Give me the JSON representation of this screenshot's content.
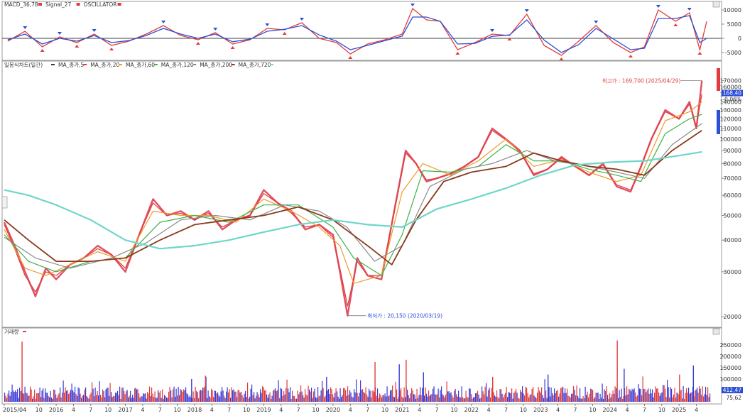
{
  "chart_data": [
    {
      "type": "line",
      "panel": "macd",
      "legend": [
        {
          "label": "MACD_36,78",
          "color": "#e23b3b"
        },
        {
          "label": "Signal_27",
          "color": "#e23b3b"
        },
        {
          "label": "OSCILLATOR",
          "color": "#e23b3b"
        }
      ],
      "yticks": [
        "10000",
        "5000",
        "0",
        "-5000"
      ],
      "ylim": [
        -7000,
        11500
      ],
      "series": [
        {
          "name": "MACD_36,78",
          "color": "#e23b3b",
          "x": [
            2015.3,
            2015.55,
            2015.8,
            2016.05,
            2016.3,
            2016.55,
            2016.8,
            2017.05,
            2017.3,
            2017.55,
            2017.8,
            2018.05,
            2018.3,
            2018.55,
            2018.8,
            2019.05,
            2019.3,
            2019.55,
            2019.8,
            2020.05,
            2020.25,
            2020.5,
            2020.75,
            2021.0,
            2021.15,
            2021.35,
            2021.55,
            2021.8,
            2022.05,
            2022.3,
            2022.55,
            2022.8,
            2023.05,
            2023.3,
            2023.55,
            2023.8,
            2024.05,
            2024.3,
            2024.5,
            2024.7,
            2024.95,
            2025.15,
            2025.3,
            2025.4
          ],
          "y": [
            -1000,
            2500,
            -3000,
            500,
            -1500,
            1500,
            -2500,
            -1000,
            1500,
            4500,
            1000,
            -500,
            2000,
            -2000,
            -500,
            3500,
            3000,
            5500,
            0,
            -1500,
            -5500,
            -2000,
            -500,
            1500,
            10500,
            6500,
            6000,
            -4000,
            -1500,
            1500,
            1000,
            8500,
            -2500,
            -6000,
            -1000,
            4500,
            -1500,
            -5000,
            -3000,
            10000,
            6000,
            9000,
            -4000,
            6000
          ]
        },
        {
          "name": "Signal_27",
          "color": "#2b4fd6",
          "x": [
            2015.3,
            2015.55,
            2015.8,
            2016.05,
            2016.3,
            2016.55,
            2016.8,
            2017.05,
            2017.3,
            2017.55,
            2017.8,
            2018.05,
            2018.3,
            2018.55,
            2018.8,
            2019.05,
            2019.3,
            2019.55,
            2019.8,
            2020.05,
            2020.25,
            2020.5,
            2020.75,
            2021.0,
            2021.15,
            2021.35,
            2021.55,
            2021.8,
            2022.05,
            2022.3,
            2022.55,
            2022.8,
            2023.05,
            2023.3,
            2023.55,
            2023.8,
            2024.05,
            2024.3,
            2024.5,
            2024.7,
            2024.95,
            2025.15,
            2025.3,
            2025.4
          ],
          "y": [
            -500,
            1500,
            -2000,
            0,
            -1000,
            1000,
            -1500,
            -800,
            1000,
            3500,
            1500,
            0,
            1500,
            -1200,
            -300,
            2500,
            3200,
            4500,
            1200,
            -1000,
            -4000,
            -2500,
            -800,
            800,
            7500,
            7500,
            6000,
            -2000,
            -1800,
            700,
            1200,
            6500,
            -600,
            -5000,
            -2200,
            3500,
            -200,
            -4000,
            -3500,
            7000,
            7000,
            8000,
            -1500,
            0
          ]
        }
      ]
    },
    {
      "type": "line",
      "panel": "price",
      "legend": [
        {
          "label": "일봉식차트(일간)",
          "color": "#3a3a3a"
        },
        {
          "label": "MA_종가,5",
          "color": "#e23b3b"
        },
        {
          "label": "MA_종가,20",
          "color": "#f09a2a"
        },
        {
          "label": "MA_종가,60",
          "color": "#3bb04a"
        },
        {
          "label": "MA_종가,120",
          "color": "#8a8a8a"
        },
        {
          "label": "MA_종가,200",
          "color": "#8a3a1a"
        },
        {
          "label": "MA_종가,720",
          "color": "#6fd6c9"
        }
      ],
      "yscale": "log",
      "ylim": [
        18500,
        190000
      ],
      "yticks": [
        "170000",
        "160000",
        "150000",
        "140000",
        "130000",
        "120000",
        "110000",
        "100000",
        "90000",
        "80000",
        "70000",
        "60000",
        "50000",
        "40000",
        "30000",
        "20000"
      ],
      "current_value_label": "168,40",
      "change_label": "-0.06%",
      "annotations": [
        {
          "text": "최고가 : 169,700 (2025/04/29)",
          "x": 2025.33,
          "y": 169700,
          "color": "#e23b3b"
        },
        {
          "text": "최저가 : 20,150 (2020/03/19)",
          "x": 2020.21,
          "y": 20150,
          "color": "#2b4fd6"
        }
      ],
      "series": [
        {
          "name": "일봉식차트(일간)",
          "color": "#d8344a",
          "x": [
            2015.25,
            2015.4,
            2015.55,
            2015.7,
            2015.85,
            2016.0,
            2016.2,
            2016.4,
            2016.6,
            2016.8,
            2017.0,
            2017.2,
            2017.4,
            2017.6,
            2017.8,
            2018.0,
            2018.2,
            2018.4,
            2018.6,
            2018.8,
            2019.0,
            2019.2,
            2019.4,
            2019.6,
            2019.8,
            2020.0,
            2020.1,
            2020.21,
            2020.35,
            2020.5,
            2020.7,
            2020.9,
            2021.05,
            2021.2,
            2021.35,
            2021.5,
            2021.7,
            2021.9,
            2022.1,
            2022.3,
            2022.5,
            2022.7,
            2022.9,
            2023.1,
            2023.3,
            2023.5,
            2023.7,
            2023.9,
            2024.1,
            2024.3,
            2024.45,
            2024.6,
            2024.8,
            2025.0,
            2025.15,
            2025.25,
            2025.33
          ],
          "y": [
            47000,
            38000,
            30000,
            24000,
            31000,
            28000,
            32000,
            34000,
            38000,
            35000,
            30000,
            42000,
            58000,
            50000,
            52000,
            48000,
            52000,
            44000,
            48000,
            50000,
            63000,
            56000,
            52000,
            44000,
            46000,
            42000,
            30000,
            20150,
            34000,
            29000,
            28000,
            55000,
            90000,
            80000,
            68000,
            70000,
            73000,
            78000,
            85000,
            110000,
            100000,
            90000,
            72000,
            76000,
            85000,
            78000,
            72000,
            80000,
            65000,
            62000,
            78000,
            100000,
            130000,
            120000,
            140000,
            110000,
            169700
          ]
        },
        {
          "name": "MA_종가,5",
          "color": "#e23b3b",
          "x": [
            2015.25,
            2015.4,
            2015.55,
            2015.7,
            2015.85,
            2016.0,
            2016.2,
            2016.4,
            2016.6,
            2016.8,
            2017.0,
            2017.2,
            2017.4,
            2017.6,
            2017.8,
            2018.0,
            2018.2,
            2018.4,
            2018.6,
            2018.8,
            2019.0,
            2019.2,
            2019.4,
            2019.6,
            2019.8,
            2020.0,
            2020.1,
            2020.21,
            2020.35,
            2020.5,
            2020.7,
            2020.9,
            2021.05,
            2021.2,
            2021.35,
            2021.5,
            2021.7,
            2021.9,
            2022.1,
            2022.3,
            2022.5,
            2022.7,
            2022.9,
            2023.1,
            2023.3,
            2023.5,
            2023.7,
            2023.9,
            2024.1,
            2024.3,
            2024.45,
            2024.6,
            2024.8,
            2025.0,
            2025.15,
            2025.25,
            2025.33
          ],
          "y": [
            46000,
            37000,
            29000,
            25000,
            30000,
            29000,
            32000,
            34000,
            37000,
            35000,
            31000,
            42000,
            56000,
            50000,
            51000,
            48000,
            51000,
            45000,
            48000,
            50000,
            61000,
            56000,
            51000,
            45000,
            46000,
            41000,
            31000,
            22000,
            33000,
            29000,
            29000,
            54000,
            88000,
            80000,
            69000,
            70000,
            73000,
            78000,
            85000,
            108000,
            99000,
            89000,
            73000,
            76000,
            84000,
            78000,
            72000,
            79000,
            66000,
            63000,
            77000,
            100000,
            128000,
            120000,
            137000,
            112000,
            150000
          ]
        },
        {
          "name": "MA_종가,20",
          "color": "#f09a2a",
          "x": [
            2015.25,
            2015.55,
            2015.85,
            2016.2,
            2016.6,
            2017.0,
            2017.4,
            2017.8,
            2018.2,
            2018.6,
            2019.0,
            2019.4,
            2019.8,
            2020.1,
            2020.3,
            2020.7,
            2021.0,
            2021.3,
            2021.7,
            2022.1,
            2022.5,
            2022.9,
            2023.3,
            2023.7,
            2024.1,
            2024.45,
            2024.8,
            2025.15,
            2025.33
          ],
          "y": [
            44000,
            31000,
            29000,
            32000,
            36000,
            33000,
            52000,
            50000,
            50000,
            47000,
            58000,
            52000,
            45000,
            38000,
            27000,
            29000,
            62000,
            80000,
            72000,
            82000,
            100000,
            78000,
            83000,
            74000,
            68000,
            72000,
            118000,
            128000,
            140000
          ]
        },
        {
          "name": "MA_종가,60",
          "color": "#3bb04a",
          "x": [
            2015.25,
            2015.6,
            2016.0,
            2016.5,
            2017.0,
            2017.5,
            2018.0,
            2018.5,
            2019.0,
            2019.5,
            2020.0,
            2020.3,
            2020.7,
            2021.0,
            2021.3,
            2021.7,
            2022.1,
            2022.5,
            2022.9,
            2023.3,
            2023.7,
            2024.1,
            2024.45,
            2024.8,
            2025.15,
            2025.33
          ],
          "y": [
            42000,
            33000,
            30000,
            33000,
            34000,
            47000,
            50000,
            47000,
            55000,
            55000,
            45000,
            34000,
            29000,
            42000,
            75000,
            74000,
            78000,
            95000,
            82000,
            82000,
            76000,
            72000,
            68000,
            105000,
            120000,
            125000
          ]
        },
        {
          "name": "MA_종가,120",
          "color": "#8a8a8a",
          "x": [
            2015.25,
            2015.7,
            2016.2,
            2016.8,
            2017.3,
            2017.8,
            2018.3,
            2018.8,
            2019.3,
            2019.8,
            2020.2,
            2020.6,
            2021.0,
            2021.4,
            2021.9,
            2022.3,
            2022.8,
            2023.2,
            2023.7,
            2024.1,
            2024.5,
            2024.9,
            2025.33
          ],
          "y": [
            41000,
            34000,
            31000,
            34000,
            39000,
            48000,
            50000,
            48000,
            55000,
            52000,
            45000,
            33000,
            38000,
            65000,
            76000,
            80000,
            90000,
            82000,
            78000,
            74000,
            70000,
            95000,
            115000
          ]
        },
        {
          "name": "MA_종가,200",
          "color": "#8a3a1a",
          "x": [
            2015.25,
            2015.6,
            2016.0,
            2016.5,
            2017.0,
            2017.5,
            2018.0,
            2018.5,
            2019.0,
            2019.5,
            2020.0,
            2020.5,
            2020.85,
            2021.2,
            2021.6,
            2022.0,
            2022.5,
            2022.9,
            2023.3,
            2023.7,
            2024.1,
            2024.5,
            2024.9,
            2025.33
          ],
          "y": [
            48000,
            40000,
            33000,
            33000,
            34000,
            40000,
            46000,
            48000,
            50000,
            54000,
            48000,
            38000,
            32000,
            48000,
            68000,
            74000,
            78000,
            88000,
            82000,
            78000,
            76000,
            72000,
            90000,
            108000
          ]
        },
        {
          "name": "MA_종가,720",
          "color": "#6fd6c9",
          "x": [
            2015.25,
            2015.6,
            2016.0,
            2016.5,
            2017.0,
            2017.5,
            2018.0,
            2018.5,
            2019.0,
            2019.5,
            2020.0,
            2020.5,
            2021.0,
            2021.5,
            2022.0,
            2022.5,
            2023.0,
            2023.5,
            2024.0,
            2024.5,
            2025.0,
            2025.33
          ],
          "y": [
            63000,
            60000,
            55000,
            48000,
            40000,
            37000,
            38000,
            40000,
            43000,
            46000,
            48000,
            46000,
            45000,
            53000,
            58000,
            64000,
            72000,
            79000,
            81000,
            82000,
            86000,
            89000
          ]
        }
      ]
    },
    {
      "type": "bar",
      "panel": "volume",
      "legend": [
        {
          "label": "거래량",
          "color": "#e23b3b"
        }
      ],
      "yticks": [
        "250000",
        "200000",
        "150000",
        "100000",
        "50000"
      ],
      "ylim": [
        0,
        300000
      ],
      "current_value_label": "412,47",
      "secondary_value_label": "75,62",
      "spikes": [
        {
          "x": 2015.5,
          "y": 265000
        },
        {
          "x": 2017.95,
          "y": 100000
        },
        {
          "x": 2018.15,
          "y": 115000
        },
        {
          "x": 2019.9,
          "y": 110000
        },
        {
          "x": 2020.6,
          "y": 175000
        },
        {
          "x": 2020.95,
          "y": 165000
        },
        {
          "x": 2021.05,
          "y": 185000
        },
        {
          "x": 2021.3,
          "y": 130000
        },
        {
          "x": 2022.3,
          "y": 110000
        },
        {
          "x": 2023.1,
          "y": 120000
        },
        {
          "x": 2024.1,
          "y": 270000
        },
        {
          "x": 2024.2,
          "y": 145000
        },
        {
          "x": 2025.0,
          "y": 120000
        },
        {
          "x": 2025.2,
          "y": 160000
        }
      ]
    }
  ],
  "x_axis": {
    "domain": [
      2015.25,
      2025.45
    ],
    "ticks": [
      {
        "x": 2015.25,
        "label": "2015/04"
      },
      {
        "x": 2015.75,
        "label": "10"
      },
      {
        "x": 2016.0,
        "label": "2016"
      },
      {
        "x": 2016.25,
        "label": "4"
      },
      {
        "x": 2016.5,
        "label": "7"
      },
      {
        "x": 2016.75,
        "label": "10"
      },
      {
        "x": 2017.0,
        "label": "2017"
      },
      {
        "x": 2017.25,
        "label": "4"
      },
      {
        "x": 2017.5,
        "label": "7"
      },
      {
        "x": 2017.75,
        "label": "10"
      },
      {
        "x": 2018.0,
        "label": "2018"
      },
      {
        "x": 2018.25,
        "label": "4"
      },
      {
        "x": 2018.5,
        "label": "7"
      },
      {
        "x": 2018.75,
        "label": "10"
      },
      {
        "x": 2019.0,
        "label": "2019"
      },
      {
        "x": 2019.25,
        "label": "4"
      },
      {
        "x": 2019.5,
        "label": "7"
      },
      {
        "x": 2019.75,
        "label": "10"
      },
      {
        "x": 2020.0,
        "label": "2020"
      },
      {
        "x": 2020.25,
        "label": "4"
      },
      {
        "x": 2020.5,
        "label": "7"
      },
      {
        "x": 2020.75,
        "label": "10"
      },
      {
        "x": 2021.0,
        "label": "2021"
      },
      {
        "x": 2021.25,
        "label": "4"
      },
      {
        "x": 2021.5,
        "label": "7"
      },
      {
        "x": 2021.75,
        "label": "10"
      },
      {
        "x": 2022.0,
        "label": "2022"
      },
      {
        "x": 2022.25,
        "label": "4"
      },
      {
        "x": 2022.5,
        "label": "7"
      },
      {
        "x": 2022.75,
        "label": "10"
      },
      {
        "x": 2023.0,
        "label": "2023"
      },
      {
        "x": 2023.25,
        "label": "4"
      },
      {
        "x": 2023.5,
        "label": "7"
      },
      {
        "x": 2023.75,
        "label": "10"
      },
      {
        "x": 2024.0,
        "label": "2024"
      },
      {
        "x": 2024.25,
        "label": "4"
      },
      {
        "x": 2024.5,
        "label": "7"
      },
      {
        "x": 2024.75,
        "label": "10"
      },
      {
        "x": 2025.0,
        "label": "2025"
      },
      {
        "x": 2025.25,
        "label": "4"
      }
    ]
  }
}
